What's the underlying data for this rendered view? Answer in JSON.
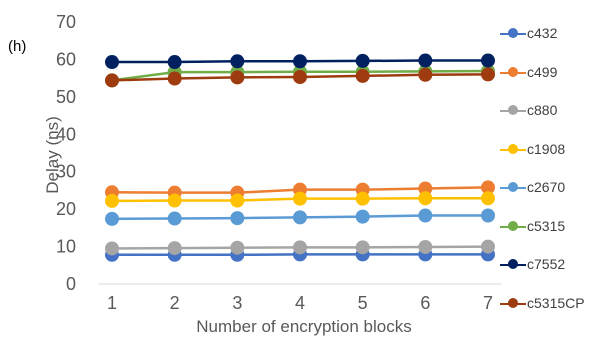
{
  "panel_label": "(h)",
  "chart_data": {
    "type": "line",
    "title": "",
    "xlabel": "Number of encryption blocks",
    "ylabel": "Delay (ns)",
    "x": [
      1,
      2,
      3,
      4,
      5,
      6,
      7
    ],
    "ylim": [
      0,
      70
    ],
    "yticks": [
      0,
      10,
      20,
      30,
      40,
      50,
      60,
      70
    ],
    "grid": false,
    "legend_position": "right",
    "series": [
      {
        "name": "c432",
        "color": "#4472C4",
        "values": [
          7.8,
          7.8,
          7.8,
          7.9,
          7.9,
          7.9,
          7.9
        ]
      },
      {
        "name": "c499",
        "color": "#ED7D31",
        "values": [
          24.5,
          24.4,
          24.4,
          25.2,
          25.2,
          25.5,
          25.8
        ]
      },
      {
        "name": "c880",
        "color": "#A5A5A5",
        "values": [
          9.5,
          9.6,
          9.7,
          9.8,
          9.8,
          9.9,
          10.0
        ]
      },
      {
        "name": "c1908",
        "color": "#FFC000",
        "values": [
          22.2,
          22.3,
          22.3,
          22.8,
          22.8,
          22.9,
          22.9
        ]
      },
      {
        "name": "c2670",
        "color": "#5B9BD5",
        "values": [
          17.4,
          17.5,
          17.6,
          17.8,
          18.0,
          18.3,
          18.3
        ]
      },
      {
        "name": "c5315",
        "color": "#70AD47",
        "values": [
          54.4,
          56.6,
          56.6,
          56.7,
          56.7,
          56.8,
          56.9
        ]
      },
      {
        "name": "c7552",
        "color": "#002060",
        "values": [
          59.3,
          59.3,
          59.5,
          59.5,
          59.6,
          59.7,
          59.7
        ]
      },
      {
        "name": "c5315CP",
        "color": "#9E3B0F",
        "values": [
          54.4,
          54.9,
          55.2,
          55.3,
          55.6,
          55.9,
          56.0
        ]
      }
    ]
  }
}
